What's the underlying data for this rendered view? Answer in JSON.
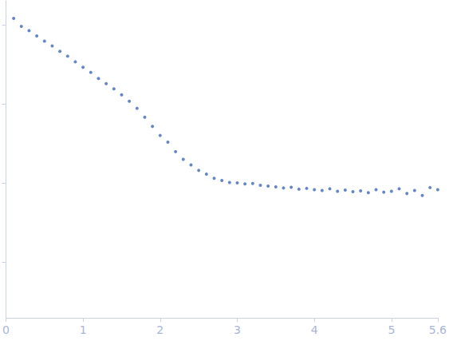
{
  "chart_data": {
    "type": "scatter",
    "x": [
      0.1,
      0.2,
      0.3,
      0.4,
      0.5,
      0.6,
      0.7,
      0.8,
      0.9,
      1.0,
      1.1,
      1.2,
      1.3,
      1.4,
      1.5,
      1.6,
      1.7,
      1.8,
      1.9,
      2.0,
      2.1,
      2.2,
      2.3,
      2.4,
      2.5,
      2.6,
      2.7,
      2.8,
      2.9,
      3.0,
      3.1,
      3.2,
      3.3,
      3.4,
      3.5,
      3.6,
      3.7,
      3.8,
      3.9,
      4.0,
      4.1,
      4.2,
      4.3,
      4.4,
      4.5,
      4.6,
      4.7,
      4.8,
      4.9,
      5.0,
      5.1,
      5.2,
      5.3,
      5.4,
      5.5,
      5.6
    ],
    "values": [
      1.2,
      0.95,
      0.84,
      0.72,
      0.62,
      0.54,
      0.46,
      0.4,
      0.34,
      0.29,
      0.25,
      0.21,
      0.18,
      0.155,
      0.13,
      0.108,
      0.088,
      0.068,
      0.052,
      0.04,
      0.033,
      0.025,
      0.02,
      0.017,
      0.0145,
      0.013,
      0.0115,
      0.0108,
      0.0102,
      0.0101,
      0.0098,
      0.0099,
      0.0094,
      0.0092,
      0.009,
      0.0087,
      0.0089,
      0.0084,
      0.0086,
      0.0083,
      0.0081,
      0.0085,
      0.0079,
      0.0082,
      0.0078,
      0.008,
      0.0076,
      0.0083,
      0.0077,
      0.0079,
      0.0085,
      0.0074,
      0.0081,
      0.007,
      0.0088,
      0.0083
    ],
    "color": "#3d68b8",
    "marker": "circle",
    "xlim": [
      0,
      5.6
    ],
    "xticks": [
      0,
      1,
      2,
      3,
      4,
      5
    ],
    "ylim": [
      0.0002,
      2
    ],
    "yticks": [
      0.001,
      0.01,
      0.1,
      1
    ],
    "log": "y",
    "grid": false,
    "tick_labels": "x"
  }
}
